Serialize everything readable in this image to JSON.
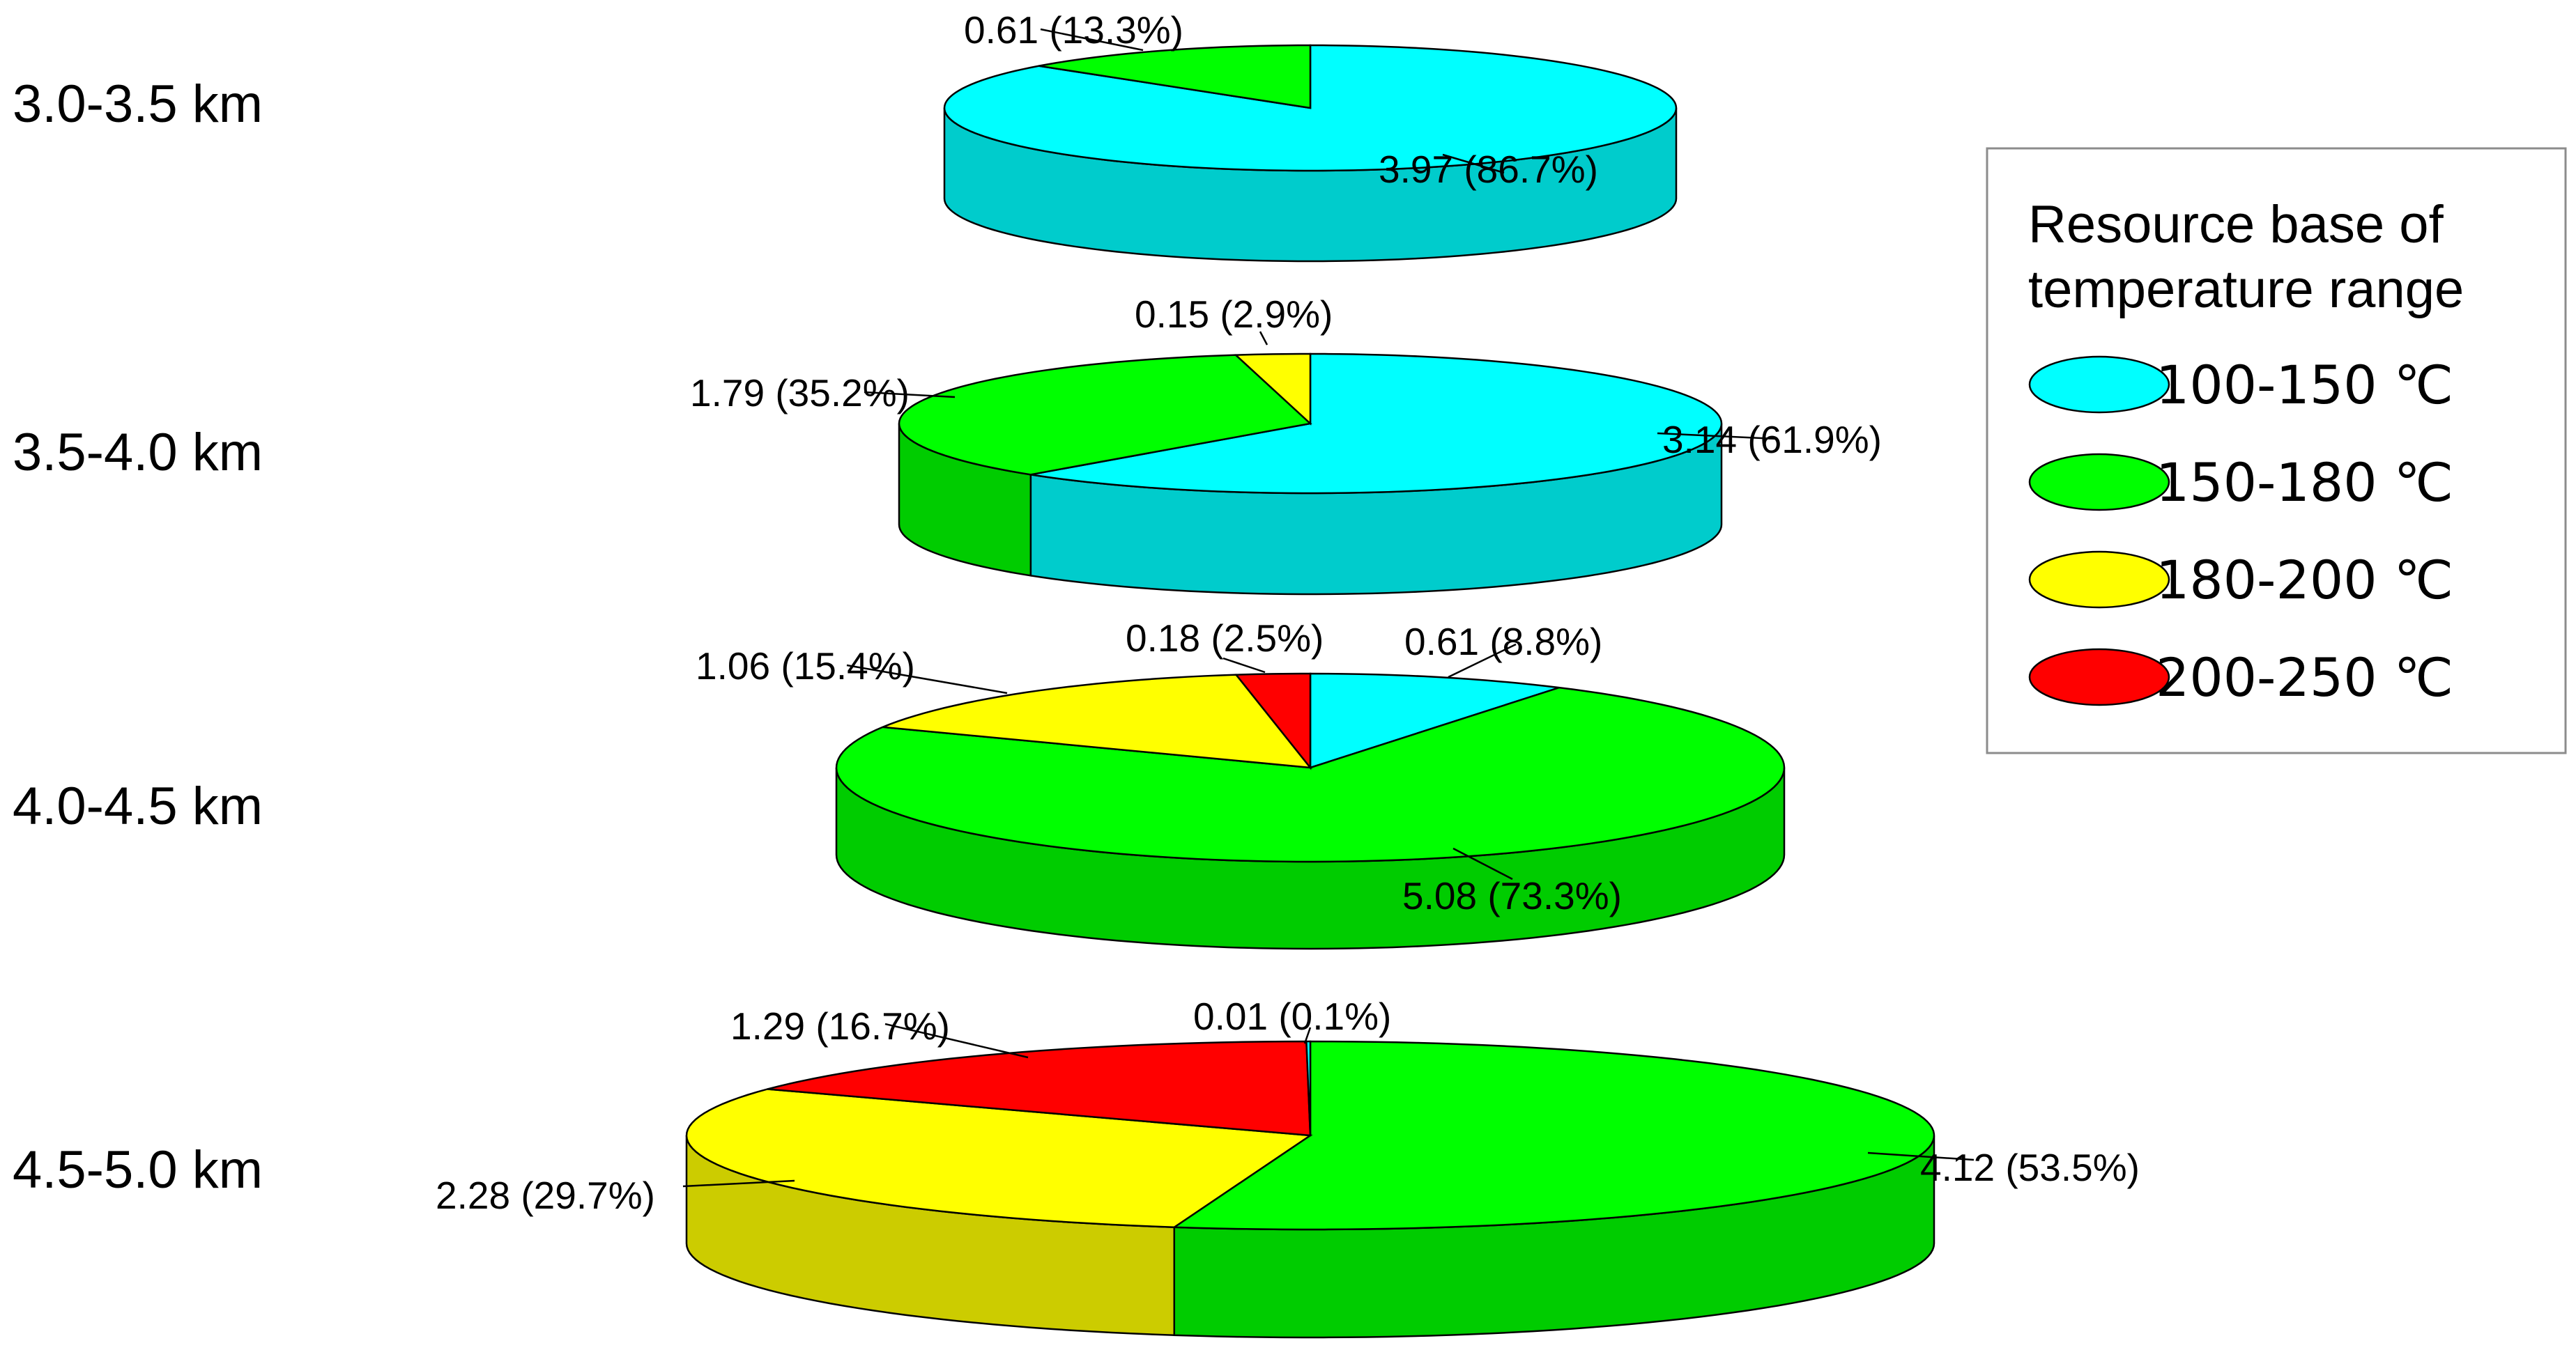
{
  "chart_data": {
    "type": "pie",
    "unit_note": "",
    "legend": {
      "title_lines": [
        "Resource base of",
        "temperature range"
      ],
      "items": [
        {
          "label": "100-150 ℃",
          "color": "#00ffff"
        },
        {
          "label": "150-180 ℃",
          "color": "#00ff00"
        },
        {
          "label": "180-200 ℃",
          "color": "#ffff00"
        },
        {
          "label": "200-250 ℃",
          "color": "#ff0000"
        }
      ],
      "placement": "right"
    },
    "pies": [
      {
        "depth_label": "3.0-3.5 km",
        "slices": [
          {
            "category": "100-150 ℃",
            "value": 3.97,
            "percent": 86.7,
            "label": "3.97 (86.7%)"
          },
          {
            "category": "150-180 ℃",
            "value": 0.61,
            "percent": 13.3,
            "label": "0.61 (13.3%)"
          }
        ]
      },
      {
        "depth_label": "3.5-4.0 km",
        "slices": [
          {
            "category": "100-150 ℃",
            "value": 3.14,
            "percent": 61.9,
            "label": "3.14 (61.9%)"
          },
          {
            "category": "150-180 ℃",
            "value": 1.79,
            "percent": 35.2,
            "label": "1.79 (35.2%)"
          },
          {
            "category": "180-200 ℃",
            "value": 0.15,
            "percent": 2.9,
            "label": "0.15 (2.9%)"
          }
        ]
      },
      {
        "depth_label": "4.0-4.5 km",
        "slices": [
          {
            "category": "100-150 ℃",
            "value": 0.61,
            "percent": 8.8,
            "label": "0.61 (8.8%)"
          },
          {
            "category": "150-180 ℃",
            "value": 5.08,
            "percent": 73.3,
            "label": "5.08 (73.3%)"
          },
          {
            "category": "180-200 ℃",
            "value": 1.06,
            "percent": 15.4,
            "label": "1.06 (15.4%)"
          },
          {
            "category": "200-250 ℃",
            "value": 0.18,
            "percent": 2.5,
            "label": "0.18 (2.5%)"
          }
        ]
      },
      {
        "depth_label": "4.5-5.0 km",
        "slices": [
          {
            "category": "150-180 ℃",
            "value": 4.12,
            "percent": 53.5,
            "label": "4.12 (53.5%)"
          },
          {
            "category": "180-200 ℃",
            "value": 2.28,
            "percent": 29.7,
            "label": "2.28 (29.7%)"
          },
          {
            "category": "200-250 ℃",
            "value": 1.29,
            "percent": 16.7,
            "label": "1.29 (16.7%)"
          },
          {
            "category": "100-150 ℃",
            "value": 0.01,
            "percent": 0.1,
            "label": "0.01 (0.1%)"
          }
        ]
      }
    ]
  }
}
